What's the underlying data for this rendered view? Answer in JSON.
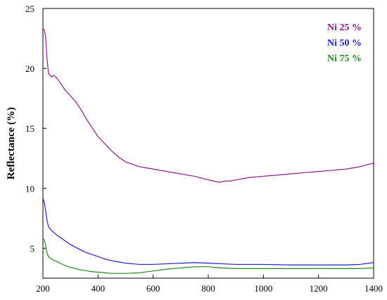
{
  "chart_data": {
    "type": "line",
    "title": "",
    "xlabel": "",
    "ylabel": "Reflectance (%)",
    "xlim": [
      200,
      1400
    ],
    "ylim": [
      2.5,
      25
    ],
    "x_ticks": [
      200,
      400,
      600,
      800,
      1000,
      1200,
      1400
    ],
    "y_ticks": [
      5,
      10,
      15,
      20,
      25
    ],
    "grid": false,
    "legend_position": "top-right",
    "series": [
      {
        "name": "Ni 25 %",
        "color": "#8B1A89",
        "x": [
          200,
          205,
          210,
          215,
          220,
          230,
          240,
          250,
          260,
          280,
          300,
          320,
          340,
          360,
          380,
          400,
          425,
          450,
          475,
          500,
          525,
          550,
          575,
          600,
          650,
          700,
          750,
          800,
          820,
          840,
          860,
          880,
          900,
          950,
          1000,
          1050,
          1100,
          1150,
          1200,
          1250,
          1300,
          1350,
          1400
        ],
        "y": [
          23.3,
          23.2,
          22.6,
          20.8,
          19.6,
          19.3,
          19.4,
          19.2,
          18.9,
          18.2,
          17.7,
          17.2,
          16.5,
          15.7,
          15.0,
          14.3,
          13.7,
          13.1,
          12.6,
          12.2,
          12.0,
          11.8,
          11.7,
          11.6,
          11.4,
          11.2,
          11.0,
          10.7,
          10.6,
          10.5,
          10.6,
          10.6,
          10.7,
          10.9,
          11.0,
          11.1,
          11.2,
          11.3,
          11.4,
          11.5,
          11.6,
          11.8,
          12.1
        ]
      },
      {
        "name": "Ni 50 %",
        "color": "#1F1FC8",
        "x": [
          200,
          205,
          210,
          215,
          220,
          230,
          250,
          275,
          300,
          325,
          350,
          375,
          400,
          425,
          450,
          475,
          500,
          525,
          550,
          600,
          650,
          700,
          750,
          800,
          850,
          900,
          950,
          1000,
          1100,
          1200,
          1300,
          1350,
          1400
        ],
        "y": [
          9.2,
          8.8,
          8.1,
          7.3,
          6.8,
          6.5,
          6.1,
          5.7,
          5.3,
          5.0,
          4.7,
          4.5,
          4.3,
          4.1,
          3.95,
          3.85,
          3.75,
          3.7,
          3.65,
          3.65,
          3.7,
          3.75,
          3.8,
          3.75,
          3.7,
          3.65,
          3.65,
          3.65,
          3.6,
          3.6,
          3.6,
          3.65,
          3.8
        ]
      },
      {
        "name": "Ni 75 %",
        "color": "#1F8A1F",
        "x": [
          200,
          205,
          210,
          215,
          220,
          230,
          250,
          275,
          300,
          325,
          350,
          375,
          400,
          425,
          450,
          475,
          500,
          525,
          550,
          600,
          650,
          700,
          750,
          800,
          850,
          900,
          950,
          1000,
          1100,
          1200,
          1300,
          1350,
          1400
        ],
        "y": [
          5.8,
          5.7,
          5.2,
          4.6,
          4.3,
          4.1,
          3.9,
          3.6,
          3.4,
          3.25,
          3.15,
          3.05,
          3.0,
          2.95,
          2.9,
          2.9,
          2.9,
          2.92,
          2.95,
          3.1,
          3.25,
          3.35,
          3.45,
          3.45,
          3.35,
          3.3,
          3.3,
          3.3,
          3.3,
          3.3,
          3.3,
          3.3,
          3.35
        ]
      }
    ]
  }
}
